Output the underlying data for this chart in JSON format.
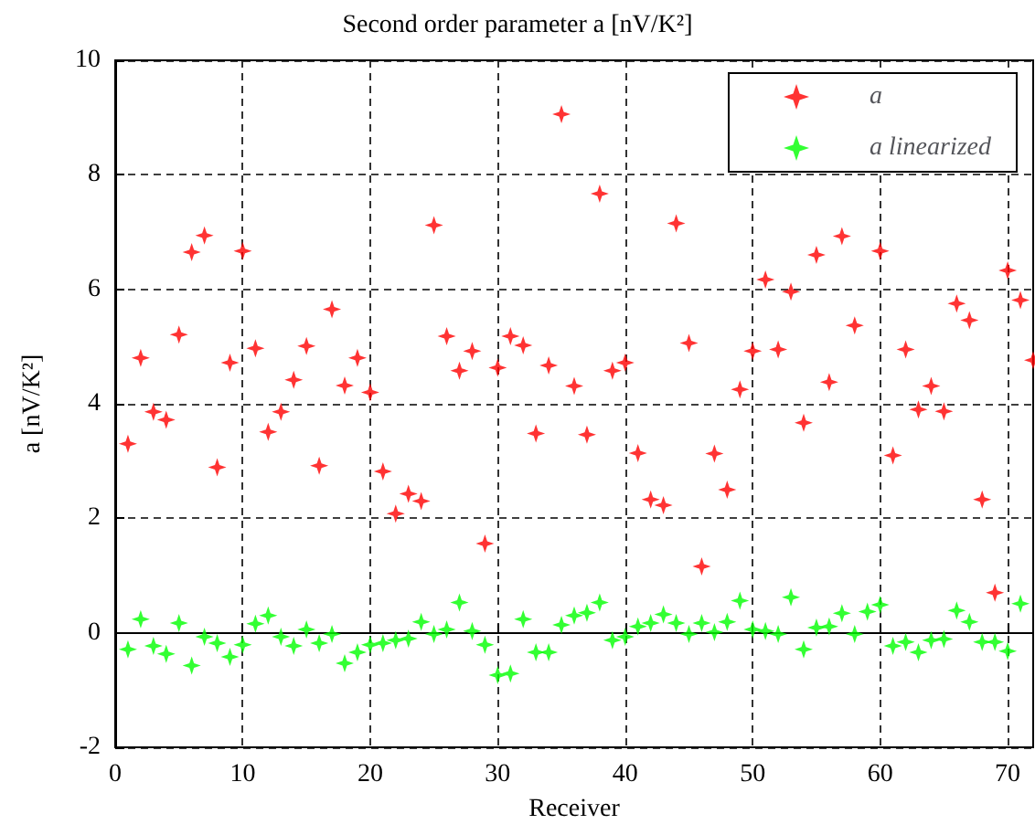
{
  "chart_data": {
    "type": "scatter",
    "title": "Second order parameter a [nV/K²]",
    "xlabel": "Receiver",
    "ylabel": "a [nV/K²]",
    "x": [
      1,
      2,
      3,
      4,
      5,
      6,
      7,
      8,
      9,
      10,
      11,
      12,
      13,
      14,
      15,
      16,
      17,
      18,
      19,
      20,
      21,
      22,
      23,
      24,
      25,
      26,
      27,
      28,
      29,
      30,
      31,
      32,
      33,
      34,
      35,
      36,
      37,
      38,
      39,
      40,
      41,
      42,
      43,
      44,
      45,
      46,
      47,
      48,
      49,
      50,
      51,
      52,
      53,
      54,
      55,
      56,
      57,
      58,
      59,
      60,
      61,
      62,
      63,
      64,
      65,
      66,
      67,
      68,
      69,
      70,
      71,
      72
    ],
    "series": [
      {
        "name": "a",
        "color": "#ff0000",
        "values": [
          3.3,
          4.8,
          3.86,
          3.72,
          5.21,
          6.65,
          6.94,
          2.89,
          4.72,
          6.67,
          4.97,
          3.51,
          3.86,
          4.42,
          5.01,
          2.92,
          5.65,
          4.32,
          4.8,
          4.2,
          2.82,
          2.08,
          2.43,
          2.3,
          7.12,
          5.18,
          4.58,
          4.92,
          1.56,
          4.63,
          5.18,
          5.02,
          3.48,
          4.67,
          9.06,
          4.31,
          3.46,
          7.67,
          4.58,
          4.72,
          3.14,
          2.33,
          2.23,
          7.15,
          5.06,
          1.16,
          3.13,
          2.5,
          4.25,
          4.92,
          6.17,
          4.95,
          5.96,
          3.67,
          6.6,
          4.38,
          6.93,
          5.37,
          null,
          6.67,
          3.1,
          4.95,
          3.9,
          4.31,
          3.87,
          5.75,
          5.46,
          2.33,
          0.7,
          6.33,
          5.81,
          4.76
        ]
      },
      {
        "name": "a linearized",
        "color": "#00ff00",
        "values": [
          -0.29,
          0.24,
          -0.23,
          -0.37,
          0.17,
          -0.57,
          -0.07,
          -0.18,
          -0.42,
          -0.21,
          0.16,
          0.3,
          -0.07,
          -0.23,
          0.06,
          -0.18,
          -0.02,
          -0.53,
          -0.34,
          -0.21,
          -0.18,
          -0.13,
          -0.1,
          0.19,
          -0.02,
          0.06,
          0.53,
          0.03,
          -0.21,
          -0.74,
          -0.71,
          0.24,
          -0.34,
          -0.34,
          0.14,
          0.3,
          0.35,
          0.53,
          -0.13,
          -0.07,
          0.11,
          0.17,
          0.32,
          0.17,
          -0.02,
          0.17,
          0.01,
          0.19,
          0.56,
          0.06,
          0.03,
          -0.02,
          0.62,
          -0.29,
          0.09,
          0.11,
          0.34,
          -0.02,
          0.37,
          0.49,
          -0.23,
          -0.16,
          -0.34,
          -0.13,
          -0.11,
          0.39,
          0.19,
          -0.16,
          -0.16,
          -0.32,
          0.51,
          null
        ]
      }
    ],
    "xlim": [
      0,
      72
    ],
    "xticks": [
      0,
      10,
      20,
      30,
      40,
      50,
      60,
      70
    ],
    "ylim": [
      -2,
      10
    ],
    "yticks": [
      -2,
      0,
      2,
      4,
      6,
      8,
      10
    ],
    "grid": true,
    "legend": "top right",
    "marker": "star"
  }
}
